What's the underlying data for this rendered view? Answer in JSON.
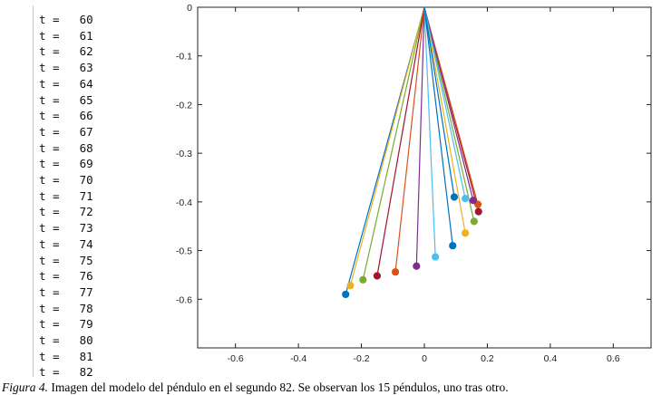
{
  "console": {
    "lines": [
      {
        "prefix": "t =",
        "value": "60"
      },
      {
        "prefix": "t =",
        "value": "61"
      },
      {
        "prefix": "t =",
        "value": "62"
      },
      {
        "prefix": "t =",
        "value": "63"
      },
      {
        "prefix": "t =",
        "value": "64"
      },
      {
        "prefix": "t =",
        "value": "65"
      },
      {
        "prefix": "t =",
        "value": "66"
      },
      {
        "prefix": "t =",
        "value": "67"
      },
      {
        "prefix": "t =",
        "value": "68"
      },
      {
        "prefix": "t =",
        "value": "69"
      },
      {
        "prefix": "t =",
        "value": "70"
      },
      {
        "prefix": "t =",
        "value": "71"
      },
      {
        "prefix": "t =",
        "value": "72"
      },
      {
        "prefix": "t =",
        "value": "73"
      },
      {
        "prefix": "t =",
        "value": "74"
      },
      {
        "prefix": "t =",
        "value": "75"
      },
      {
        "prefix": "t =",
        "value": "76"
      },
      {
        "prefix": "t =",
        "value": "77"
      },
      {
        "prefix": "t =",
        "value": "78"
      },
      {
        "prefix": "t =",
        "value": "79"
      },
      {
        "prefix": "t =",
        "value": "80"
      },
      {
        "prefix": "t =",
        "value": "81"
      },
      {
        "prefix": "t =",
        "value": "82"
      }
    ]
  },
  "caption": {
    "label": "Figura 4.",
    "text": "  Imagen del modelo del péndulo en el segundo 82. Se observan los 15 péndulos, uno tras otro."
  },
  "chart_data": {
    "type": "line",
    "pivot": [
      0,
      0
    ],
    "xlim": [
      -0.72,
      0.72
    ],
    "ylim": [
      -0.7,
      0
    ],
    "xticks": [
      -0.6,
      -0.4,
      -0.2,
      0,
      0.2,
      0.4,
      0.6
    ],
    "xtick_labels": [
      "-0.6",
      "-0.4",
      "-0.2",
      "0",
      "0.2",
      "0.4",
      "0.6"
    ],
    "yticks": [
      0,
      -0.1,
      -0.2,
      -0.3,
      -0.4,
      -0.5,
      -0.6
    ],
    "ytick_labels": [
      "0",
      "-0.1",
      "-0.2",
      "-0.3",
      "-0.4",
      "-0.5",
      "-0.6"
    ],
    "grid": false,
    "pendulums": [
      {
        "x": -0.25,
        "y": -0.59,
        "color": "#0072BD"
      },
      {
        "x": -0.235,
        "y": -0.572,
        "color": "#EDB120"
      },
      {
        "x": -0.195,
        "y": -0.56,
        "color": "#77AC30"
      },
      {
        "x": -0.15,
        "y": -0.552,
        "color": "#A2142F"
      },
      {
        "x": -0.092,
        "y": -0.544,
        "color": "#D95319"
      },
      {
        "x": -0.025,
        "y": -0.532,
        "color": "#7E2F8E"
      },
      {
        "x": 0.035,
        "y": -0.513,
        "color": "#4DBEEE"
      },
      {
        "x": 0.09,
        "y": -0.49,
        "color": "#0072BD"
      },
      {
        "x": 0.13,
        "y": -0.464,
        "color": "#EDB120"
      },
      {
        "x": 0.158,
        "y": -0.44,
        "color": "#77AC30"
      },
      {
        "x": 0.172,
        "y": -0.42,
        "color": "#A2142F"
      },
      {
        "x": 0.17,
        "y": -0.405,
        "color": "#D95319"
      },
      {
        "x": 0.155,
        "y": -0.397,
        "color": "#7E2F8E"
      },
      {
        "x": 0.13,
        "y": -0.393,
        "color": "#4DBEEE"
      },
      {
        "x": 0.095,
        "y": -0.39,
        "color": "#0072BD"
      }
    ]
  }
}
